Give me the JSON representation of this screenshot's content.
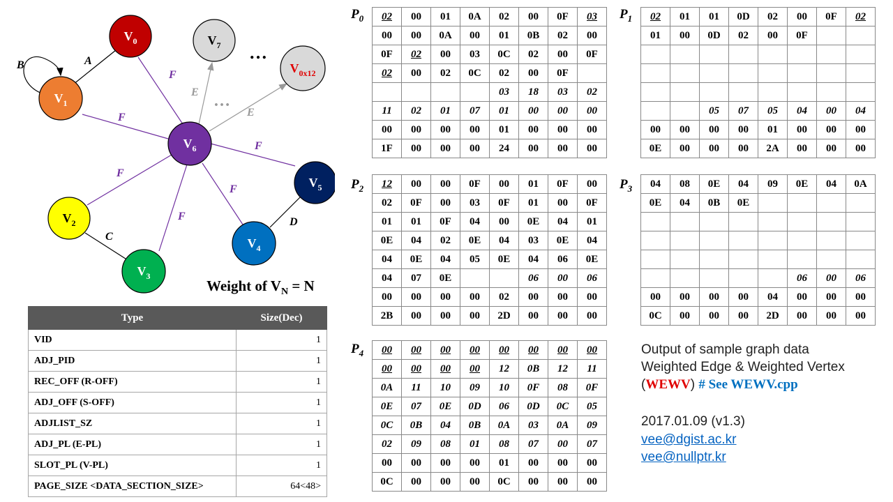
{
  "graph": {
    "vertices": [
      {
        "id": "v0",
        "label": "V",
        "sub": "0",
        "fill": "#c00000",
        "text": "#ffffff"
      },
      {
        "id": "v7",
        "label": "V",
        "sub": "7",
        "fill": "#d9d9d9",
        "text": "#000000"
      },
      {
        "id": "v0x12",
        "label": "V",
        "sub": "0x12",
        "fill": "#d9d9d9",
        "text": "#e00000"
      },
      {
        "id": "v1",
        "label": "V",
        "sub": "1",
        "fill": "#ed7d31",
        "text": "#ffffff"
      },
      {
        "id": "v6",
        "label": "V",
        "sub": "6",
        "fill": "#7030a0",
        "text": "#ffffff"
      },
      {
        "id": "v5",
        "label": "V",
        "sub": "5",
        "fill": "#002060",
        "text": "#ffffff"
      },
      {
        "id": "v2",
        "label": "V",
        "sub": "2",
        "fill": "#ffff00",
        "text": "#000000"
      },
      {
        "id": "v4",
        "label": "V",
        "sub": "4",
        "fill": "#0070c0",
        "text": "#ffffff"
      },
      {
        "id": "v3",
        "label": "V",
        "sub": "3",
        "fill": "#00b050",
        "text": "#ffffff"
      }
    ],
    "edge_labels": {
      "A": "A",
      "B": "B",
      "C": "C",
      "D": "D",
      "E": "E",
      "F": "F"
    },
    "ellipsis": "…",
    "colors": {
      "F_edge": "#7030a0",
      "E_edge": "#999999",
      "plain_edge": "#000000"
    }
  },
  "weight_caption": {
    "text": "Weight of V",
    "sub": "N",
    "suffix": " = N"
  },
  "type_table": {
    "headers": [
      "Type",
      "Size(Dec)"
    ],
    "rows": [
      {
        "type": "VID",
        "size": "1"
      },
      {
        "type": "ADJ_PID",
        "size": "1"
      },
      {
        "type": "REC_OFF (R-OFF)",
        "size": "1"
      },
      {
        "type": "ADJ_OFF (S-OFF)",
        "size": "1"
      },
      {
        "type": "ADJLIST_SZ",
        "size": "1"
      },
      {
        "type": "ADJ_PL (E-PL)",
        "size": "1"
      },
      {
        "type": "SLOT_PL (V-PL)",
        "size": "1"
      },
      {
        "type": "PAGE_SIZE <DATA_SECTION_SIZE>",
        "size": "64<48>"
      }
    ]
  },
  "pages": [
    {
      "label": "P",
      "sub": "0",
      "rows": [
        [
          "02|b-red ul it",
          "00|b-red",
          "01|b-red",
          "0A|b-red",
          "02|b-red",
          "00|b-red",
          "0F|b-red",
          "03|b-org ul it"
        ],
        [
          "00|b-org",
          "00|b-org",
          "0A|b-org",
          "00|b-org",
          "01|b-org",
          "0B|b-org",
          "02|b-org",
          "00|b-org"
        ],
        [
          "0F|b-org",
          "02|b-yel ul it",
          "00|b-yel",
          "03|b-yel",
          "0C|b-yel",
          "02|b-yel",
          "00|b-yel",
          "0F|b-yel"
        ],
        [
          "02|b-grn ul it",
          "00|b-grn",
          "02|b-grn",
          "0C|b-grn",
          "02|b-grn",
          "00|b-grn",
          "0F|b-grn",
          "|"
        ],
        [
          "|",
          "|",
          "|",
          "|",
          "03|b-grn it",
          "18|b-grn it",
          "03|b-grn it",
          "02|b-yel it"
        ],
        [
          "11|b-yel it",
          "02|b-yel it",
          "01|b-org it",
          "07|b-org it",
          "01|b-org it",
          "00|b-red it",
          "00|b-red it",
          "00|b-red it"
        ],
        [
          "00|b-dk",
          "00|b-dk",
          "00|b-dk",
          "00|b-dk",
          "01|b-dk",
          "00|b-dk",
          "00|b-dk",
          "00|b-dk"
        ],
        [
          "1F|b-dk f-yel",
          "00|b-dk f-yel",
          "00|b-dk f-yel",
          "00|b-dk f-yel",
          "24|b-dk f-grn",
          "00|b-dk f-grn",
          "00|b-dk f-grn",
          "00|b-dk f-grn"
        ]
      ]
    },
    {
      "label": "P",
      "sub": "1",
      "rows": [
        [
          "02|b-blu ul it",
          "01|b-blu",
          "01|b-blu",
          "0D|b-blu",
          "02|b-blu",
          "00|b-blu",
          "0F|b-blu",
          "02|b-nav ul it"
        ],
        [
          "01|b-nav",
          "00|b-nav",
          "0D|b-nav",
          "02|b-nav",
          "00|b-nav",
          "0F|b-nav",
          "|",
          "|"
        ],
        [
          "|",
          "|",
          "|",
          "|",
          "|",
          "|",
          "|",
          "|"
        ],
        [
          "|",
          "|",
          "|",
          "|",
          "|",
          "|",
          "|",
          "|"
        ],
        [
          "|",
          "|",
          "|",
          "|",
          "|",
          "|",
          "|",
          "|"
        ],
        [
          "|",
          "|",
          "05|b-nav it",
          "07|b-nav it",
          "05|b-nav it",
          "04|b-blu it",
          "00|b-blu it",
          "04|b-blu it"
        ],
        [
          "00|b-dk",
          "00|b-dk",
          "00|b-dk",
          "00|b-dk",
          "01|b-dk",
          "00|b-dk",
          "00|b-dk",
          "00|b-dk"
        ],
        [
          "0E|b-dk f-yel",
          "00|b-dk f-yel",
          "00|b-dk f-yel",
          "00|b-dk f-yel",
          "2A|b-dk f-grn",
          "00|b-dk f-grn",
          "00|b-dk f-grn",
          "00|b-dk f-grn"
        ]
      ]
    },
    {
      "label": "P",
      "sub": "2",
      "rows": [
        [
          "12|b-pur ul it",
          "00|b-pur",
          "00|b-pur",
          "0F|b-pur",
          "00|b-pur",
          "01|b-pur",
          "0F|b-pur",
          "00|b-pur"
        ],
        [
          "02|b-pur",
          "0F|b-pur",
          "00|b-pur",
          "03|b-pur",
          "0F|b-pur",
          "01|b-pur",
          "00|b-pur",
          "0F|b-pur"
        ],
        [
          "01|b-pur",
          "01|b-pur",
          "0F|b-pur",
          "04|b-gry",
          "00|b-gry",
          "0E|b-gry",
          "04|b-gry",
          "01|b-gry"
        ],
        [
          "0E|b-gry",
          "04|b-gry",
          "02|b-gry",
          "0E|b-gry",
          "04|b-gry",
          "03|b-gry",
          "0E|b-gry",
          "04|b-gry"
        ],
        [
          "04|b-gry",
          "0E|b-gry",
          "04|b-gry",
          "05|b-gry",
          "0E|b-gry",
          "04|b-gry",
          "06|b-gry",
          "0E|b-gry"
        ],
        [
          "04|b-gry",
          "07|b-gry",
          "0E|b-gry",
          "|",
          "|",
          "06|b-pur it",
          "00|b-pur it",
          "06|b-pur it"
        ],
        [
          "00|b-dk",
          "00|b-dk",
          "00|b-dk",
          "00|b-dk",
          "02|b-dk",
          "00|b-dk",
          "00|b-dk",
          "00|b-dk"
        ],
        [
          "2B|b-dk f-yel",
          "00|b-dk f-yel",
          "00|b-dk f-yel",
          "00|b-dk f-yel",
          "2D|b-dk f-grn",
          "00|b-dk f-grn",
          "00|b-dk f-grn",
          "00|b-dk f-grn"
        ]
      ]
    },
    {
      "label": "P",
      "sub": "3",
      "rows": [
        [
          "04|b-gry",
          "08|b-gry",
          "0E|b-gry",
          "04|b-gry",
          "09|b-gry",
          "0E|b-gry",
          "04|b-gry",
          "0A|b-gry"
        ],
        [
          "0E|b-gry",
          "04|b-gry f-red",
          "0B|b-gry f-red",
          "0E|b-gry f-red",
          "|",
          "|",
          "|",
          "|"
        ],
        [
          "|",
          "|",
          "|",
          "|",
          "|",
          "|",
          "|",
          "|"
        ],
        [
          "|",
          "|",
          "|",
          "|",
          "|",
          "|",
          "|",
          "|"
        ],
        [
          "|",
          "|",
          "|",
          "|",
          "|",
          "|",
          "|",
          "|"
        ],
        [
          "|",
          "|",
          "|",
          "|",
          "|",
          "06|b-pur it",
          "00|b-pur it",
          "06|b-pur it"
        ],
        [
          "00|b-dk",
          "00|b-dk",
          "00|b-dk",
          "00|b-dk",
          "04|b-dk",
          "00|b-dk",
          "00|b-dk",
          "00|b-dk"
        ],
        [
          "0C|b-dk f-yel",
          "00|b-dk f-yel",
          "00|b-dk f-yel",
          "00|b-dk f-yel",
          "2D|b-dk f-grn",
          "00|b-dk f-grn",
          "00|b-dk f-grn",
          "00|b-dk f-grn"
        ]
      ]
    },
    {
      "label": "P",
      "sub": "4",
      "rows": [
        [
          "00|b-gry ul it",
          "00|b-gry ul it",
          "00|b-gry ul it",
          "00|b-gry ul it",
          "00|b-gry ul it",
          "00|b-gry ul it",
          "00|b-gry ul it",
          "00|b-gry ul it"
        ],
        [
          "00|b-gry ul it",
          "00|b-gry ul it",
          "00|b-gry ul it",
          "00|b-gry ul it",
          "12|b-gry it f-red",
          "0B|b-gry it f-red",
          "12|b-gry it f-red",
          "11|b-gry it"
        ],
        [
          "0A|b-gry it",
          "11|b-gry it",
          "10|b-gry it",
          "09|b-gry it",
          "10|b-gry it",
          "0F|b-gry it",
          "08|b-gry it",
          "0F|b-gry it"
        ],
        [
          "0E|b-gry it",
          "07|b-gry it",
          "0E|b-gry it",
          "0D|b-gry it",
          "06|b-gry it",
          "0D|b-gry it",
          "0C|b-gry it",
          "05|b-gry it"
        ],
        [
          "0C|b-gry it",
          "0B|b-gry it",
          "04|b-gry it",
          "0B|b-gry it",
          "0A|b-gry it",
          "03|b-gry it",
          "0A|b-gry it",
          "09|b-gry it"
        ],
        [
          "02|b-gry it",
          "09|b-gry it",
          "08|b-gry it",
          "01|b-gry it",
          "08|b-gry it",
          "07|b-gry it",
          "00|b-gry it",
          "07|b-gry it"
        ],
        [
          "00|b-dk",
          "00|b-dk",
          "00|b-dk",
          "00|b-dk",
          "01|b-dk",
          "00|b-dk",
          "00|b-dk",
          "00|b-dk"
        ],
        [
          "0C|b-dk f-yel",
          "00|b-dk f-yel",
          "00|b-dk f-yel",
          "00|b-dk f-yel",
          "0C|b-dk f-grn",
          "00|b-dk f-grn",
          "00|b-dk f-grn",
          "00|b-dk f-grn"
        ]
      ]
    }
  ],
  "info": {
    "line1": "Output of sample graph data",
    "line2": "Weighted Edge & Weighted Vertex",
    "line3_open": "(",
    "line3_red": "WEWV",
    "line3_close": ")",
    "line3_blue": "# See WEWV.cpp",
    "date": "2017.01.09 (v1.3)",
    "email1": "vee@dgist.ac.kr",
    "email2": "vee@nullptr.kr"
  }
}
